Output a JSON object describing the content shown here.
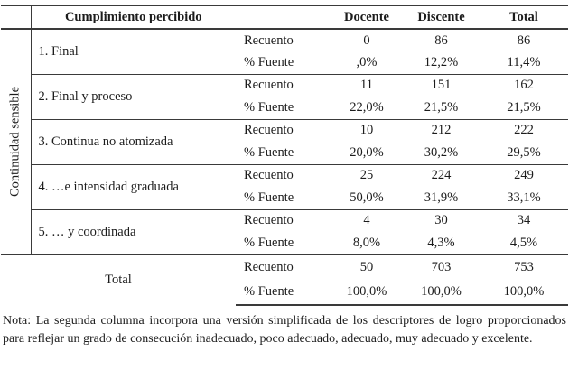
{
  "table": {
    "header": {
      "category_title": "Cumplimiento percibido",
      "col_docente": "Docente",
      "col_discente": "Discente",
      "col_total": "Total"
    },
    "side_label": "Continuidad sensible",
    "row_labels": {
      "count": "Recuento",
      "pct": "% Fuente"
    },
    "groups": [
      {
        "label": "1. Final",
        "count": [
          "0",
          "86",
          "86"
        ],
        "pct": [
          ",0%",
          "12,2%",
          "11,4%"
        ]
      },
      {
        "label": "2. Final y proceso",
        "count": [
          "11",
          "151",
          "162"
        ],
        "pct": [
          "22,0%",
          "21,5%",
          "21,5%"
        ]
      },
      {
        "label": "3. Continua no atomizada",
        "count": [
          "10",
          "212",
          "222"
        ],
        "pct": [
          "20,0%",
          "30,2%",
          "29,5%"
        ]
      },
      {
        "label": "4. …e intensidad graduada",
        "count": [
          "25",
          "224",
          "249"
        ],
        "pct": [
          "50,0%",
          "31,9%",
          "33,1%"
        ]
      },
      {
        "label": "5. … y coordinada",
        "count": [
          "4",
          "30",
          "34"
        ],
        "pct": [
          "8,0%",
          "4,3%",
          "4,5%"
        ]
      }
    ],
    "total": {
      "label": "Total",
      "count": [
        "50",
        "703",
        "753"
      ],
      "pct": [
        "100,0%",
        "100,0%",
        "100,0%"
      ]
    }
  },
  "note": "Nota: La segunda columna incorpora una versión simplificada de los descriptores de logro proporcionados para reflejar un grado de consecución inadecuado, poco adecuado, adecuado, muy adecuado y excelente."
}
